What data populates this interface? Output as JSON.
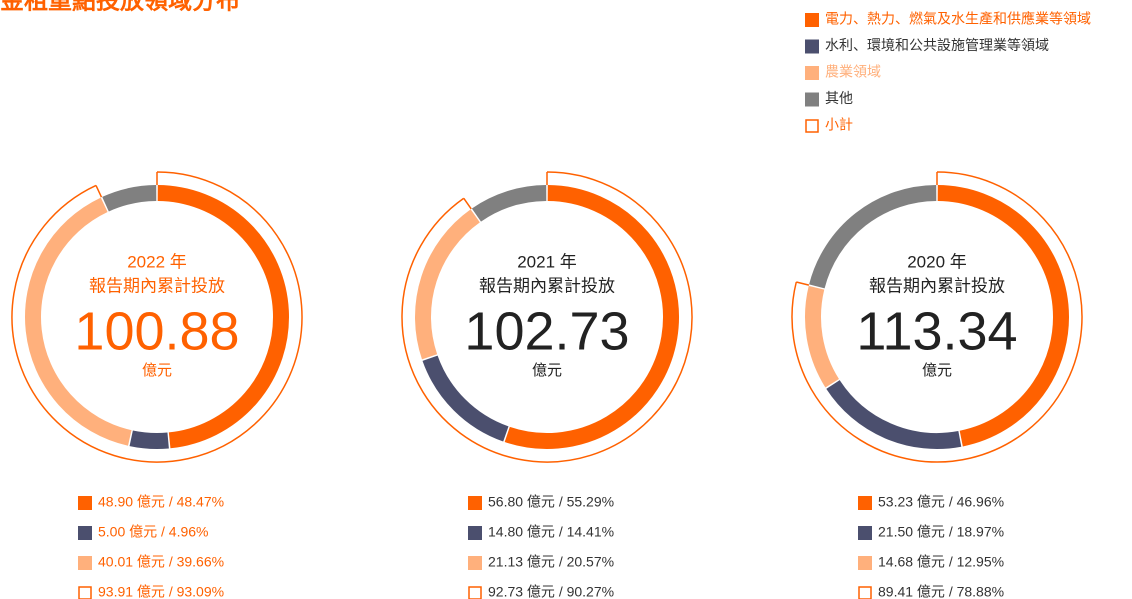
{
  "title": "金租重點投放領域分布",
  "legend": [
    {
      "name": "電力、熱力、燃氣及水生產和供應業等領域",
      "color": "#ff6100",
      "text_color": "#ff6100",
      "hollow": false
    },
    {
      "name": "水利、環境和公共設施管理業等領域",
      "color": "#4b4f6e",
      "text_color": "#333333",
      "hollow": false
    },
    {
      "name": "農業領域",
      "color": "#ffb07c",
      "text_color": "#ffb07c",
      "hollow": false
    },
    {
      "name": "其他",
      "color": "#808080",
      "text_color": "#333333",
      "hollow": false
    },
    {
      "name": "小計",
      "color": "#ff6100",
      "text_color": "#ff6100",
      "hollow": true
    }
  ],
  "chart_data": [
    {
      "type": "donut",
      "year": "2022 年",
      "subtitle": "報告期內累計投放",
      "total": 100.88,
      "unit": "億元",
      "text_color": "#ff6100",
      "values": [
        48.47,
        4.96,
        39.66
      ],
      "value_labels": [
        "48.90 億元 / 48.47%",
        "5.00 億元 / 4.96%",
        "40.01 億元 / 39.66%"
      ],
      "subtotal": 93.09,
      "subtotal_label": "93.91 億元 / 93.09%"
    },
    {
      "type": "donut",
      "year": "2021 年",
      "subtitle": "報告期內累計投放",
      "total": 102.73,
      "unit": "億元",
      "text_color": "#222222",
      "values": [
        55.29,
        14.41,
        20.57
      ],
      "value_labels": [
        "56.80 億元 / 55.29%",
        "14.80 億元 / 14.41%",
        "21.13 億元 / 20.57%"
      ],
      "subtotal": 90.27,
      "subtotal_label": "92.73 億元 / 90.27%"
    },
    {
      "type": "donut",
      "year": "2020 年",
      "subtitle": "報告期內累計投放",
      "total": 113.34,
      "unit": "億元",
      "text_color": "#222222",
      "values": [
        46.96,
        18.97,
        12.95
      ],
      "value_labels": [
        "53.23 億元 / 46.96%",
        "21.50 億元 / 18.97%",
        "14.68 億元 / 12.95%"
      ],
      "subtotal": 78.88,
      "subtotal_label": "89.41 億元 / 78.88%"
    }
  ]
}
